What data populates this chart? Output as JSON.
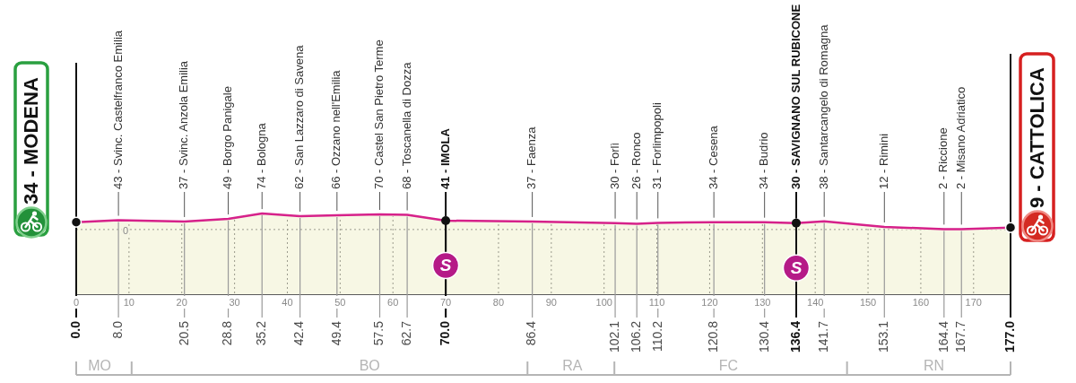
{
  "chart_data": {
    "type": "area",
    "x": [
      0,
      8,
      20.5,
      28.8,
      35.2,
      42.4,
      49.4,
      57.5,
      62.7,
      70,
      86.4,
      102.1,
      106.2,
      110.2,
      120.8,
      130.4,
      136.4,
      141.7,
      153.1,
      164.4,
      167.7,
      177
    ],
    "values": [
      34,
      43,
      37,
      49,
      74,
      62,
      66,
      70,
      68,
      41,
      37,
      30,
      26,
      31,
      34,
      34,
      30,
      38,
      12,
      2,
      2,
      9
    ],
    "color": "#d6218a",
    "value_labels": [
      "34 - MODENA",
      "43 - Svinc. Castelfranco Emilia",
      "37 - Svinc. Anzola Emilia",
      "49 - Borgo Panigale",
      "74 - Bologna",
      "62 - San Lazzaro di Savena",
      "66 - Ozzano nell'Emilia",
      "70 - Castel San Pietro Terme",
      "68 - Toscanella di Dozza",
      "41 - IMOLA",
      "37 - Faenza",
      "30 - Forlì",
      "26 - Ronco",
      "31 - Forlimpopoli",
      "34 - Cesena",
      "34 - Budrio",
      "30 - SAVIGNANO SUL RUBICONE",
      "38 - Santarcangelo di Romagna",
      "12 - Rimini",
      "2 - Riccione",
      "2 - Misano Adriatico",
      "9 - CATTOLICA"
    ],
    "xlim": [
      0,
      177
    ],
    "xticks": [
      0,
      10,
      20,
      30,
      40,
      50,
      60,
      70,
      80,
      90,
      100,
      110,
      120,
      130,
      140,
      150,
      160,
      170
    ],
    "x2lim": [
      0,
      177
    ],
    "x2ticks": [
      {
        "value": 0,
        "label": "0.0"
      },
      {
        "value": 8,
        "label": "8.0"
      },
      20.5,
      28.8,
      35.2,
      42.4,
      49.4,
      57.5,
      62.7,
      {
        "value": 70,
        "label": "70.0"
      },
      86.4,
      102.1,
      106.2,
      110.2,
      120.8,
      130.4,
      136.4,
      141.7,
      153.1,
      164.4,
      167.7,
      {
        "value": 177,
        "label": "177.0"
      }
    ],
    "ylim": [
      -300,
      170
    ],
    "grid": "x",
    "ref_lines": [
      {
        "axis": "y",
        "value": 0,
        "label": "0",
        "line_style": "dotted",
        "color": "#9b9b8c"
      }
    ],
    "bands": [
      {
        "axis": "y",
        "from": -300,
        "to": 0,
        "color": "#f7f7e4"
      }
    ],
    "annotations": [
      {
        "text": "S",
        "x": 70,
        "y": 41
      },
      {
        "text": "S",
        "x": 136.4,
        "y": 30
      },
      "MO",
      "BO",
      "RA",
      "FC",
      "RN"
    ]
  }
}
